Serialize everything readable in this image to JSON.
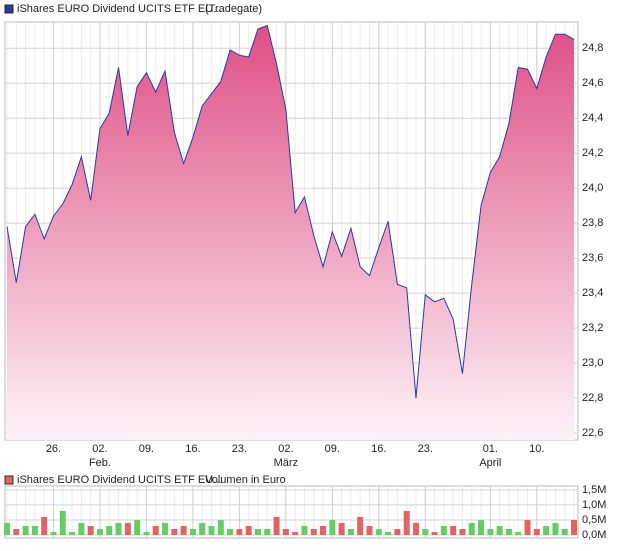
{
  "chart_data": [
    {
      "type": "area",
      "legend": {
        "name": "iShares EURO Dividend UCITS ETF EU...",
        "note": "(Tradegate)"
      },
      "categories": [
        null,
        null,
        null,
        null,
        null,
        "26.",
        null,
        null,
        null,
        null,
        "02.",
        null,
        null,
        null,
        null,
        "09.",
        null,
        null,
        null,
        null,
        "16.",
        null,
        null,
        null,
        null,
        "23.",
        null,
        null,
        null,
        null,
        "02.",
        null,
        null,
        null,
        null,
        "09.",
        null,
        null,
        null,
        null,
        "16.",
        null,
        null,
        null,
        null,
        "23.",
        null,
        null,
        null,
        null,
        null,
        null,
        "01.",
        null,
        null,
        null,
        null,
        "10.",
        null,
        null,
        null,
        null
      ],
      "months": [
        null,
        null,
        null,
        null,
        null,
        null,
        null,
        null,
        null,
        null,
        "Feb.",
        null,
        null,
        null,
        null,
        null,
        null,
        null,
        null,
        null,
        null,
        null,
        null,
        null,
        null,
        null,
        null,
        null,
        null,
        null,
        "März",
        null,
        null,
        null,
        null,
        null,
        null,
        null,
        null,
        null,
        null,
        null,
        null,
        null,
        null,
        null,
        null,
        null,
        null,
        null,
        null,
        null,
        "April",
        null,
        null,
        null,
        null,
        null,
        null,
        null,
        null,
        null
      ],
      "series": [
        {
          "name": "iShares EURO Dividend UCITS ETF EU...",
          "color": "#2b3a9e",
          "fill_top": "#de4f86",
          "fill_bottom": "#fdf3f7",
          "values": [
            23.78,
            23.46,
            23.78,
            23.85,
            23.71,
            23.84,
            23.91,
            24.02,
            24.18,
            23.93,
            24.34,
            24.43,
            24.69,
            24.3,
            24.58,
            24.66,
            24.55,
            24.67,
            24.32,
            24.14,
            24.29,
            24.47,
            24.54,
            24.61,
            24.79,
            24.76,
            24.75,
            24.91,
            24.93,
            24.71,
            24.45,
            23.86,
            23.95,
            23.73,
            23.55,
            23.75,
            23.61,
            23.77,
            23.55,
            23.5,
            23.66,
            23.81,
            23.45,
            23.43,
            22.8,
            23.39,
            23.35,
            23.37,
            23.25,
            22.94,
            23.45,
            23.9,
            24.09,
            24.18,
            24.37,
            24.69,
            24.68,
            24.57,
            24.75,
            24.88,
            24.88,
            24.85
          ]
        }
      ],
      "ylim": [
        22.56,
        24.95
      ],
      "yticks": [
        {
          "value": 22.6,
          "label": "22,6"
        },
        {
          "value": 22.8,
          "label": "22,8"
        },
        {
          "value": 23.0,
          "label": "23,0"
        },
        {
          "value": 23.2,
          "label": "23,2"
        },
        {
          "value": 23.4,
          "label": "23,4"
        },
        {
          "value": 23.6,
          "label": "23,6"
        },
        {
          "value": 23.8,
          "label": "23,8"
        },
        {
          "value": 24.0,
          "label": "24,0"
        },
        {
          "value": 24.2,
          "label": "24,2"
        },
        {
          "value": 24.4,
          "label": "24,4"
        },
        {
          "value": 24.6,
          "label": "24,6"
        },
        {
          "value": 24.8,
          "label": "24,8"
        }
      ],
      "grid": true
    },
    {
      "type": "bar",
      "legend": {
        "name": "iShares EURO Dividend UCITS ETF EU...",
        "note": "Volumen in Euro"
      },
      "up_color": "#66cc66",
      "down_color": "#e06464",
      "values": [
        0.4,
        0.2,
        0.3,
        0.3,
        0.6,
        0.1,
        0.8,
        0.1,
        0.4,
        0.3,
        0.2,
        0.3,
        0.4,
        0.4,
        0.5,
        0.1,
        0.3,
        0.4,
        0.2,
        0.3,
        0.2,
        0.4,
        0.3,
        0.5,
        0.2,
        0.2,
        0.3,
        0.2,
        0.2,
        0.6,
        0.2,
        0.1,
        0.3,
        0.2,
        0.3,
        0.5,
        0.4,
        0.2,
        0.6,
        0.3,
        0.2,
        0.1,
        0.2,
        0.8,
        0.4,
        0.2,
        0.1,
        0.3,
        0.3,
        0.2,
        0.4,
        0.5,
        0.2,
        0.3,
        0.2,
        0.1,
        0.5,
        0.2,
        0.3,
        0.4,
        0.2,
        0.5
      ],
      "ylim": [
        -0.1,
        1.63
      ],
      "yticks": [
        {
          "value": 0,
          "label": "0,0M"
        },
        {
          "value": 0.5,
          "label": "0,5M"
        },
        {
          "value": 1.0,
          "label": "1,0M"
        },
        {
          "value": 1.5,
          "label": "1,5M"
        }
      ],
      "grid": true
    }
  ]
}
